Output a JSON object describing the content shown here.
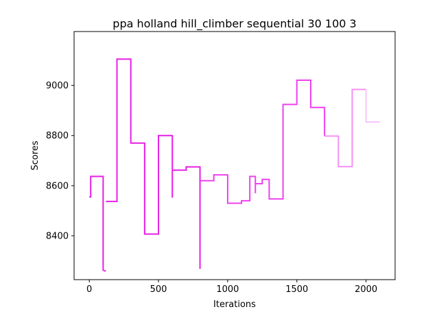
{
  "chart_data": {
    "type": "line",
    "title": "ppa holland hill_climber sequential 30 100 3",
    "xlabel": "Iterations",
    "ylabel": "Scores",
    "xlim": [
      -110,
      2210
    ],
    "ylim": [
      8225,
      9215
    ],
    "x_ticks": [
      0,
      500,
      1000,
      1500,
      2000
    ],
    "y_ticks": [
      8400,
      8600,
      8800,
      9000
    ],
    "grid": false,
    "legend": "none",
    "segments": [
      {
        "points": [
          [
            0,
            8555
          ],
          [
            10,
            8555
          ],
          [
            10,
            8637
          ],
          [
            100,
            8637
          ],
          [
            100,
            8260
          ]
        ],
        "color": "#e61ee6",
        "width": 2
      },
      {
        "points": [
          [
            105,
            8260
          ],
          [
            120,
            8260
          ]
        ],
        "color": "#e61ee6",
        "width": 2
      },
      {
        "points": [
          [
            120,
            8537
          ],
          [
            200,
            8537
          ],
          [
            200,
            9105
          ],
          [
            300,
            9105
          ],
          [
            300,
            8770
          ],
          [
            400,
            8770
          ],
          [
            400,
            8407
          ],
          [
            500,
            8407
          ],
          [
            500,
            8800
          ],
          [
            600,
            8800
          ],
          [
            600,
            8552
          ]
        ],
        "color": "#e61ee6",
        "width": 2
      },
      {
        "points": [
          [
            600,
            8662
          ],
          [
            700,
            8662
          ],
          [
            700,
            8675
          ],
          [
            800,
            8675
          ],
          [
            800,
            8268
          ]
        ],
        "color": "#e61ee6",
        "width": 2
      },
      {
        "points": [
          [
            805,
            8620
          ],
          [
            900,
            8620
          ],
          [
            900,
            8643
          ],
          [
            1000,
            8643
          ],
          [
            1000,
            8530
          ],
          [
            1100,
            8530
          ],
          [
            1100,
            8540
          ],
          [
            1160,
            8540
          ],
          [
            1160,
            8637
          ],
          [
            1200,
            8637
          ],
          [
            1200,
            8570
          ]
        ],
        "color": "#ee40ee",
        "width": 2
      },
      {
        "points": [
          [
            1200,
            8608
          ],
          [
            1250,
            8608
          ],
          [
            1250,
            8625
          ],
          [
            1300,
            8625
          ],
          [
            1300,
            8547
          ],
          [
            1400,
            8547
          ],
          [
            1400,
            8924
          ],
          [
            1500,
            8924
          ],
          [
            1500,
            9021
          ],
          [
            1600,
            9021
          ],
          [
            1600,
            8912
          ],
          [
            1700,
            8912
          ],
          [
            1700,
            8798
          ]
        ],
        "color": "#ee40ee",
        "width": 2
      },
      {
        "points": [
          [
            1700,
            8798
          ],
          [
            1800,
            8798
          ],
          [
            1800,
            8676
          ],
          [
            1900,
            8676
          ],
          [
            1900,
            8984
          ],
          [
            2000,
            8984
          ]
        ],
        "color": "#f590f5",
        "width": 2
      },
      {
        "points": [
          [
            2000,
            8984
          ],
          [
            2000,
            8854
          ],
          [
            2100,
            8854
          ]
        ],
        "color": "#f8c4f8",
        "width": 2
      }
    ]
  }
}
